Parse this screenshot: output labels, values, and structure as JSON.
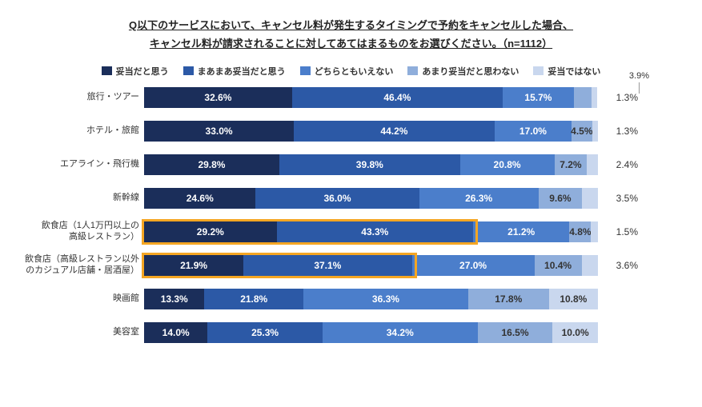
{
  "title_line1": "Q以下のサービスにおいて、キャンセル料が発生するタイミングで予約をキャンセルした場合、",
  "title_line2": "キャンセル料が請求されることに対してあてはまるものをお選びください。（n=1112）",
  "legend": [
    {
      "label": "妥当だと思う",
      "color": "#1b2e5a"
    },
    {
      "label": "まあまあ妥当だと思う",
      "color": "#2c59a6"
    },
    {
      "label": "どちらともいえない",
      "color": "#4b7ecb"
    },
    {
      "label": "あまり妥当だと思わない",
      "color": "#8faedb"
    },
    {
      "label": "妥当ではない",
      "color": "#c9d7ee"
    }
  ],
  "callout": "3.9%",
  "segment_text_colors": [
    "#ffffff",
    "#ffffff",
    "#ffffff",
    "#333333",
    "#333333"
  ],
  "rows": [
    {
      "label": "旅行・ツアー",
      "values": [
        32.6,
        46.4,
        15.7,
        3.9,
        1.3
      ],
      "hide_inbar": [
        false,
        false,
        false,
        true,
        true
      ],
      "end": "1.3%",
      "highlight": false
    },
    {
      "label": "ホテル・旅館",
      "values": [
        33.0,
        44.2,
        17.0,
        4.5,
        1.3
      ],
      "hide_inbar": [
        false,
        false,
        false,
        false,
        true
      ],
      "end": "1.3%",
      "highlight": false
    },
    {
      "label": "エアライン・飛行機",
      "values": [
        29.8,
        39.8,
        20.8,
        7.2,
        2.4
      ],
      "hide_inbar": [
        false,
        false,
        false,
        false,
        true
      ],
      "end": "2.4%",
      "highlight": false
    },
    {
      "label": "新幹線",
      "values": [
        24.6,
        36.0,
        26.3,
        9.6,
        3.5
      ],
      "hide_inbar": [
        false,
        false,
        false,
        false,
        true
      ],
      "end": "3.5%",
      "highlight": false
    },
    {
      "label": "飲食店（1人1万円以上の\n高級レストラン）",
      "values": [
        29.2,
        43.3,
        21.2,
        4.8,
        1.5
      ],
      "hide_inbar": [
        false,
        false,
        false,
        false,
        true
      ],
      "end": "1.5%",
      "highlight": true,
      "highlight_segments": 2
    },
    {
      "label": "飲食店（高級レストラン以外\nのカジュアル店舗・居酒屋）",
      "values": [
        21.9,
        37.1,
        27.0,
        10.4,
        3.6
      ],
      "hide_inbar": [
        false,
        false,
        false,
        false,
        true
      ],
      "end": "3.6%",
      "highlight": true,
      "highlight_segments": 2
    },
    {
      "label": "映画館",
      "values": [
        13.3,
        21.8,
        36.3,
        17.8,
        10.8
      ],
      "hide_inbar": [
        false,
        false,
        false,
        false,
        false
      ],
      "end": "",
      "highlight": false
    },
    {
      "label": "美容室",
      "values": [
        14.0,
        25.3,
        34.2,
        16.5,
        10.0
      ],
      "hide_inbar": [
        false,
        false,
        false,
        false,
        false
      ],
      "end": "",
      "highlight": false
    }
  ]
}
